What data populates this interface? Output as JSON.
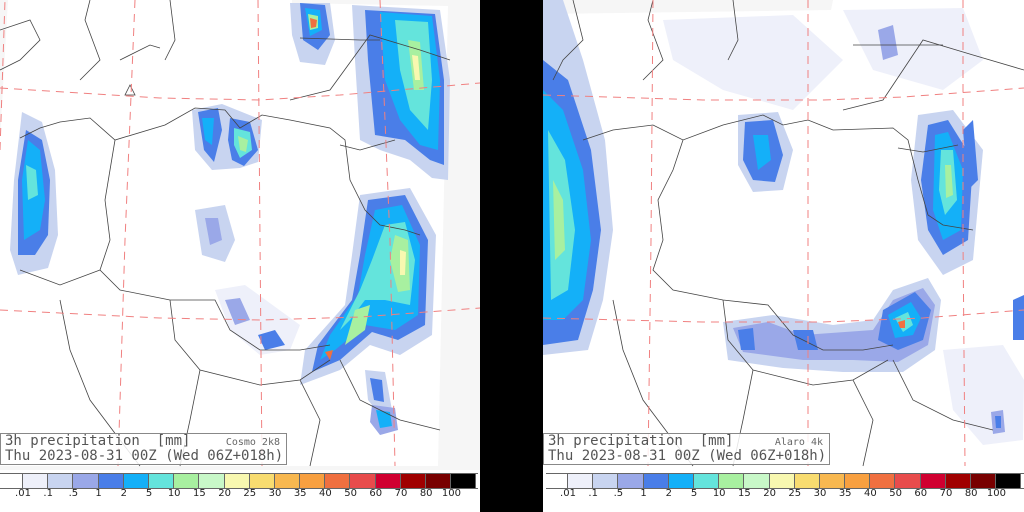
{
  "panels": [
    {
      "title": "3h precipitation",
      "units": "[mm]",
      "model": "Cosmo 2k8",
      "valid": "Thu 2023-08-31 00Z",
      "run": "(Wed 06Z+018h)"
    },
    {
      "title": "3h precipitation",
      "units": "[mm]",
      "model": "Alaro 4k",
      "valid": "Thu 2023-08-31 00Z",
      "run": "(Wed 06Z+018h)"
    }
  ],
  "colorbar": {
    "labels": [
      ".01",
      ".1",
      ".5",
      "1",
      "2",
      "5",
      "10",
      "15",
      "20",
      "25",
      "30",
      "35",
      "40",
      "50",
      "60",
      "70",
      "80",
      "100"
    ],
    "colors": [
      "#ffffff",
      "#eef0fa",
      "#c8d4f0",
      "#9aa8e8",
      "#4a7ee8",
      "#14b0f8",
      "#64e4dc",
      "#a8f0a0",
      "#c8f8c8",
      "#f8f8b0",
      "#f8dc70",
      "#f8b850",
      "#f8a040",
      "#f07040",
      "#e84c4c",
      "#d00030",
      "#a00000",
      "#780000",
      "#000000"
    ]
  }
}
